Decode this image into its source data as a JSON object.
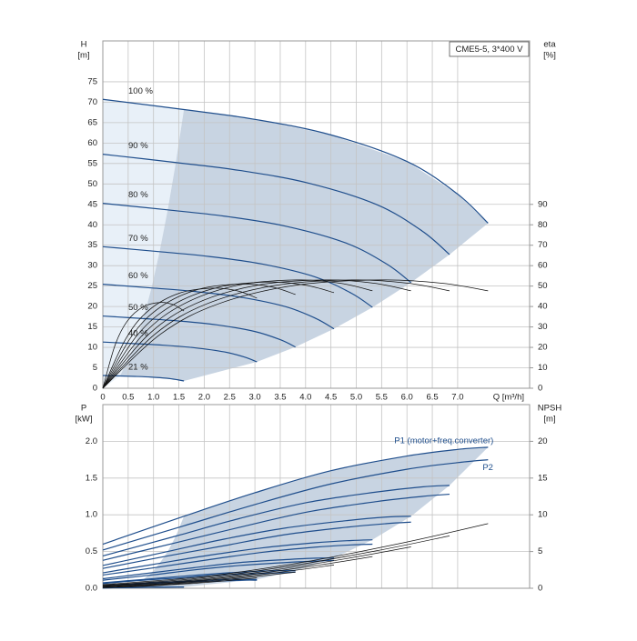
{
  "chart_data": [
    {
      "type": "line",
      "title": "CME5-5, 3*400 V",
      "x_label": "Q [m³/h]",
      "y_label": "H",
      "y_unit": "[m]",
      "y2_label": "eta",
      "y2_unit": "[%]",
      "xlim": [
        0,
        8.42
      ],
      "xticks": [
        0,
        0.5,
        {
          "value": 1,
          "label": "1.0"
        },
        1.5,
        {
          "value": 2,
          "label": "2.0"
        },
        2.5,
        {
          "value": 3,
          "label": "3.0"
        },
        3.5,
        {
          "value": 4,
          "label": "4.0"
        },
        4.5,
        {
          "value": 5,
          "label": "5.0"
        },
        5.5,
        {
          "value": 6,
          "label": "6.0"
        },
        6.5,
        {
          "value": 7,
          "label": "7.0"
        }
      ],
      "ylim": [
        0,
        85
      ],
      "yticks": [
        0,
        5,
        10,
        15,
        20,
        25,
        30,
        35,
        40,
        45,
        50,
        55,
        60,
        65,
        70,
        75
      ],
      "y2lim": [
        0,
        170
      ],
      "y2ticks": [
        0,
        10,
        20,
        30,
        40,
        50,
        60,
        70,
        80,
        90
      ],
      "grid": true,
      "area_color": "#c8d4e2",
      "area_light_color": "#e8f0f8",
      "series": [
        {
          "name": "100 %",
          "color": "#1f4e8c",
          "x": [
            0,
            1.6,
            3.0,
            4.5,
            6.0,
            7.0,
            7.6
          ],
          "values": [
            70.7,
            68.2,
            65.8,
            62.0,
            55.5,
            47.5,
            40.4
          ]
        },
        {
          "name": "90 %",
          "color": "#1f4e8c",
          "x": [
            0,
            1.44,
            2.7,
            4.05,
            5.4,
            6.3,
            6.84
          ],
          "values": [
            57.27,
            55.24,
            53.3,
            50.22,
            44.96,
            38.48,
            32.72
          ]
        },
        {
          "name": "80 %",
          "color": "#1f4e8c",
          "x": [
            0,
            1.28,
            2.4,
            3.6,
            4.8,
            5.6,
            6.08
          ],
          "values": [
            45.25,
            43.65,
            42.11,
            39.68,
            35.52,
            30.4,
            25.86
          ]
        },
        {
          "name": "70 %",
          "color": "#1f4e8c",
          "x": [
            0,
            1.12,
            2.1,
            3.15,
            4.2,
            4.9,
            5.32
          ],
          "values": [
            34.64,
            33.42,
            32.24,
            30.38,
            27.2,
            23.28,
            19.8
          ]
        },
        {
          "name": "60 %",
          "color": "#1f4e8c",
          "x": [
            0,
            0.96,
            1.8,
            2.7,
            3.6,
            4.2,
            4.56
          ],
          "values": [
            25.45,
            24.55,
            23.69,
            22.32,
            19.98,
            17.1,
            14.54
          ]
        },
        {
          "name": "50 %",
          "color": "#1f4e8c",
          "x": [
            0,
            0.8,
            1.5,
            2.25,
            3.0,
            3.5,
            3.8
          ],
          "values": [
            17.68,
            17.05,
            16.45,
            15.5,
            13.88,
            11.88,
            10.1
          ]
        },
        {
          "name": "40 %",
          "color": "#1f4e8c",
          "x": [
            0,
            0.64,
            1.2,
            1.8,
            2.4,
            2.8,
            3.04
          ],
          "values": [
            11.31,
            10.91,
            10.53,
            9.92,
            8.88,
            7.6,
            6.46
          ]
        },
        {
          "name": "21 %",
          "color": "#1f4e8c",
          "x": [
            0,
            0.34,
            0.63,
            0.95,
            1.26,
            1.47,
            1.6
          ],
          "values": [
            3.12,
            3.01,
            2.9,
            2.73,
            2.45,
            2.09,
            1.78
          ]
        },
        {
          "color": "#111111",
          "axis": "y2",
          "x": [
            0,
            1.14,
            2.28,
            3.8,
            5.47,
            6.69,
            7.6
          ],
          "values": [
            0,
            26.5,
            41.3,
            50.4,
            53,
            51.4,
            47.7
          ]
        },
        {
          "color": "#111111",
          "axis": "y2",
          "x": [
            0,
            1.03,
            2.05,
            3.42,
            4.92,
            6.02,
            6.84
          ],
          "values": [
            0,
            26.5,
            41.3,
            50.4,
            53,
            51.4,
            47.7
          ]
        },
        {
          "color": "#111111",
          "axis": "y2",
          "x": [
            0,
            0.91,
            1.82,
            3.04,
            4.38,
            5.35,
            6.08
          ],
          "values": [
            0,
            26.5,
            41.3,
            50.4,
            53,
            51.4,
            47.7
          ]
        },
        {
          "color": "#111111",
          "axis": "y2",
          "x": [
            0,
            0.8,
            1.6,
            2.66,
            3.83,
            4.68,
            5.32
          ],
          "values": [
            0,
            26.5,
            41.3,
            50.4,
            53,
            51.4,
            47.7
          ]
        },
        {
          "color": "#111111",
          "axis": "y2",
          "x": [
            0,
            0.68,
            1.37,
            2.28,
            3.28,
            4.01,
            4.56
          ],
          "values": [
            0,
            26,
            40.6,
            49.4,
            52,
            50.4,
            46.8
          ]
        },
        {
          "color": "#111111",
          "axis": "y2",
          "x": [
            0,
            0.57,
            1.14,
            1.9,
            2.74,
            3.34,
            3.8
          ],
          "values": [
            0,
            25.5,
            39.8,
            48.5,
            51,
            49.5,
            45.9
          ]
        },
        {
          "color": "#111111",
          "axis": "y2",
          "x": [
            0,
            0.46,
            0.91,
            1.52,
            2.19,
            2.68,
            3.04
          ],
          "values": [
            0,
            24.5,
            38.2,
            46.6,
            49,
            47.5,
            44.1
          ]
        },
        {
          "color": "#111111",
          "axis": "y2",
          "x": [
            0,
            0.24,
            0.48,
            0.8,
            1.15,
            1.41,
            1.6
          ],
          "values": [
            0,
            21,
            32.8,
            39.9,
            42,
            40.7,
            37.8
          ]
        }
      ]
    },
    {
      "type": "line",
      "y_label": "P",
      "y_unit": "[kW]",
      "y2_label": "NPSH",
      "y2_unit": "[m]",
      "xlim": [
        0,
        8.42
      ],
      "xticks": [
        0,
        0.5,
        1,
        1.5,
        2,
        2.5,
        3,
        3.5,
        4,
        4.5,
        5,
        5.5,
        6,
        6.5,
        7
      ],
      "ylim": [
        0,
        2.5
      ],
      "yticks": [
        {
          "value": 0,
          "label": "0.0"
        },
        0.5,
        {
          "value": 1,
          "label": "1.0"
        },
        1.5,
        {
          "value": 2,
          "label": "2.0"
        }
      ],
      "y2lim": [
        0,
        25
      ],
      "y2ticks": [
        0,
        5,
        10,
        15,
        20
      ],
      "grid": true,
      "area_color": "#c8d4e2",
      "series": [
        {
          "name": "P1 (motor+freq.converter)",
          "color": "#1f4e8c",
          "x": [
            0,
            1.6,
            3.0,
            4.5,
            6.0,
            7.0,
            7.6
          ],
          "values": [
            0.6,
            0.98,
            1.3,
            1.6,
            1.8,
            1.89,
            1.92
          ]
        },
        {
          "color": "#1f4e8c",
          "x": [
            0,
            1.44,
            2.7,
            4.05,
            5.4,
            6.3,
            6.84
          ],
          "values": [
            0.44,
            0.71,
            0.95,
            1.17,
            1.31,
            1.38,
            1.4
          ]
        },
        {
          "color": "#1f4e8c",
          "x": [
            0,
            1.28,
            2.4,
            3.6,
            4.8,
            5.6,
            6.08
          ],
          "values": [
            0.31,
            0.5,
            0.67,
            0.82,
            0.92,
            0.97,
            0.98
          ]
        },
        {
          "color": "#1f4e8c",
          "x": [
            0,
            1.12,
            2.1,
            3.15,
            4.2,
            4.9,
            5.32
          ],
          "values": [
            0.21,
            0.34,
            0.45,
            0.55,
            0.62,
            0.65,
            0.66
          ]
        },
        {
          "color": "#1f4e8c",
          "x": [
            0,
            0.96,
            1.8,
            2.7,
            3.6,
            4.2,
            4.56
          ],
          "values": [
            0.13,
            0.21,
            0.28,
            0.35,
            0.39,
            0.41,
            0.41
          ]
        },
        {
          "color": "#1f4e8c",
          "x": [
            0,
            0.8,
            1.5,
            2.25,
            3.0,
            3.5,
            3.8
          ],
          "values": [
            0.075,
            0.12,
            0.16,
            0.2,
            0.23,
            0.24,
            0.24
          ]
        },
        {
          "color": "#1f4e8c",
          "x": [
            0,
            0.64,
            1.2,
            1.8,
            2.4,
            2.8,
            3.04
          ],
          "values": [
            0.038,
            0.063,
            0.083,
            0.1,
            0.12,
            0.12,
            0.12
          ]
        },
        {
          "color": "#1f4e8c",
          "x": [
            0,
            0.34,
            0.63,
            0.95,
            1.26,
            1.47,
            1.6
          ],
          "values": [
            0.006,
            0.009,
            0.012,
            0.015,
            0.017,
            0.018,
            0.018
          ]
        },
        {
          "name": "P2",
          "color": "#1f4e8c",
          "x": [
            0,
            1.6,
            3.0,
            4.5,
            6.0,
            7.0,
            7.6
          ],
          "values": [
            0.52,
            0.85,
            1.14,
            1.42,
            1.62,
            1.71,
            1.75
          ]
        },
        {
          "color": "#1f4e8c",
          "x": [
            0,
            1.44,
            2.7,
            4.05,
            5.4,
            6.3,
            6.84
          ],
          "values": [
            0.38,
            0.62,
            0.83,
            1.04,
            1.18,
            1.25,
            1.28
          ]
        },
        {
          "color": "#1f4e8c",
          "x": [
            0,
            1.28,
            2.4,
            3.6,
            4.8,
            5.6,
            6.08
          ],
          "values": [
            0.27,
            0.44,
            0.58,
            0.73,
            0.83,
            0.88,
            0.9
          ]
        },
        {
          "color": "#1f4e8c",
          "x": [
            0,
            1.12,
            2.1,
            3.15,
            4.2,
            4.9,
            5.32
          ],
          "values": [
            0.18,
            0.29,
            0.39,
            0.49,
            0.56,
            0.59,
            0.6
          ]
        },
        {
          "color": "#1f4e8c",
          "x": [
            0,
            0.96,
            1.8,
            2.7,
            3.6,
            4.2,
            4.56
          ],
          "values": [
            0.11,
            0.18,
            0.25,
            0.31,
            0.35,
            0.37,
            0.38
          ]
        },
        {
          "color": "#1f4e8c",
          "x": [
            0,
            0.8,
            1.5,
            2.25,
            3.0,
            3.5,
            3.8
          ],
          "values": [
            0.065,
            0.11,
            0.14,
            0.18,
            0.2,
            0.21,
            0.22
          ]
        },
        {
          "color": "#1f4e8c",
          "x": [
            0,
            0.64,
            1.2,
            1.8,
            2.4,
            2.8,
            3.04
          ],
          "values": [
            0.033,
            0.054,
            0.073,
            0.091,
            0.1,
            0.11,
            0.11
          ]
        },
        {
          "color": "#1f4e8c",
          "x": [
            0,
            0.34,
            0.63,
            0.95,
            1.26,
            1.47,
            1.6
          ],
          "values": [
            0.005,
            0.008,
            0.011,
            0.013,
            0.015,
            0.016,
            0.016
          ]
        },
        {
          "color": "#111111",
          "axis": "y2",
          "x": [
            0,
            2,
            4,
            6,
            7.6
          ],
          "values": [
            0.5,
            1.6,
            3.6,
            6.3,
            8.8
          ]
        },
        {
          "color": "#111111",
          "axis": "y2",
          "x": [
            0,
            1.8,
            3.6,
            5.4,
            6.84
          ],
          "values": [
            0.4,
            1.3,
            2.92,
            5.1,
            7.13
          ]
        },
        {
          "color": "#111111",
          "axis": "y2",
          "x": [
            0,
            1.6,
            3.2,
            4.8,
            6.08
          ],
          "values": [
            0.32,
            1.02,
            2.3,
            4.03,
            5.63
          ]
        },
        {
          "color": "#111111",
          "axis": "y2",
          "x": [
            0,
            1.4,
            2.8,
            4.2,
            5.32
          ],
          "values": [
            0.25,
            0.78,
            1.76,
            3.09,
            4.31
          ]
        },
        {
          "color": "#111111",
          "axis": "y2",
          "x": [
            0,
            1.2,
            2.4,
            3.6,
            4.56
          ],
          "values": [
            0.18,
            0.58,
            1.3,
            2.27,
            3.17
          ]
        },
        {
          "color": "#111111",
          "axis": "y2",
          "x": [
            0,
            1,
            2,
            3,
            3.8
          ],
          "values": [
            0.13,
            0.4,
            0.9,
            1.58,
            2.2
          ]
        },
        {
          "color": "#111111",
          "axis": "y2",
          "x": [
            0,
            0.8,
            1.6,
            2.4,
            3.04
          ],
          "values": [
            0.08,
            0.26,
            0.58,
            1.01,
            1.41
          ]
        }
      ]
    }
  ]
}
